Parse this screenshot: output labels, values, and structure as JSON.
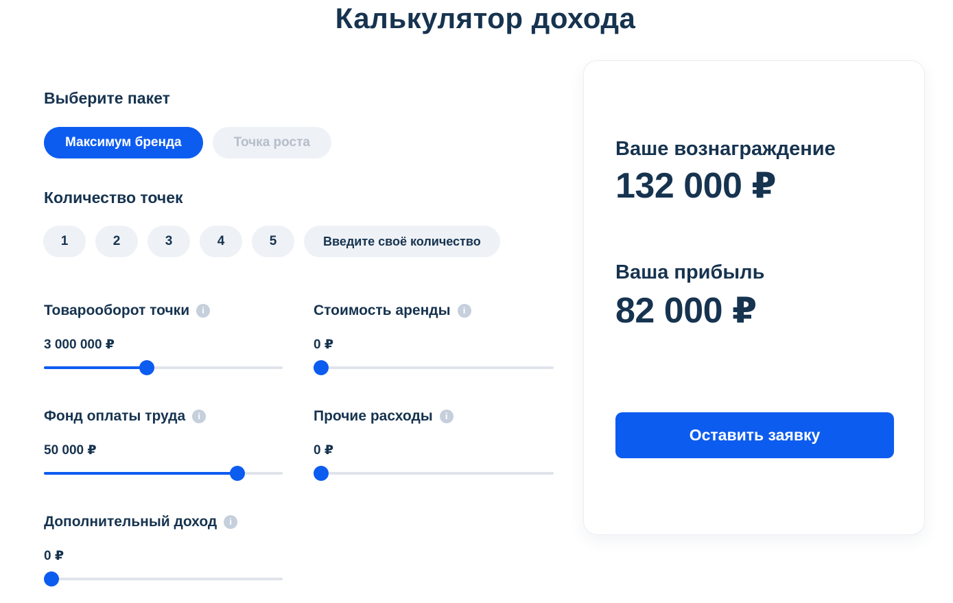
{
  "page": {
    "title": "Калькулятор дохода"
  },
  "package": {
    "label": "Выберите пакет",
    "options": [
      {
        "label": "Максимум бренда",
        "selected": true
      },
      {
        "label": "Точка роста",
        "selected": false
      }
    ]
  },
  "points": {
    "label": "Количество точек",
    "options": [
      "1",
      "2",
      "3",
      "4",
      "5"
    ],
    "custom_label": "Введите своё количество"
  },
  "sliders": [
    {
      "label": "Товарооборот точки",
      "value": "3 000 000 ₽",
      "percent": 43,
      "info_icon": "info-icon"
    },
    {
      "label": "Стоимость аренды",
      "value": "0 ₽",
      "percent": 0,
      "info_icon": "info-icon"
    },
    {
      "label": "Фонд оплаты труда",
      "value": "50 000 ₽",
      "percent": 81,
      "info_icon": "info-icon"
    },
    {
      "label": "Прочие расходы",
      "value": "0 ₽",
      "percent": 0,
      "info_icon": "info-icon"
    },
    {
      "label": "Дополнительный доход",
      "value": "0 ₽",
      "percent": 0,
      "info_icon": "info-icon"
    }
  ],
  "results": {
    "reward_label": "Ваше вознаграждение",
    "reward_value": "132 000 ₽",
    "profit_label": "Ваша прибыль",
    "profit_value": "82 000 ₽",
    "cta_label": "Оставить заявку"
  },
  "colors": {
    "accent_blue": "#0d5cf0",
    "navy_text": "#16334f",
    "muted_text": "#b6bdc9",
    "pill_background": "#eef1f6",
    "track_gray": "#e0e4ea",
    "info_icon_gray": "#c6cfdc",
    "card_background": "#ffffff"
  }
}
